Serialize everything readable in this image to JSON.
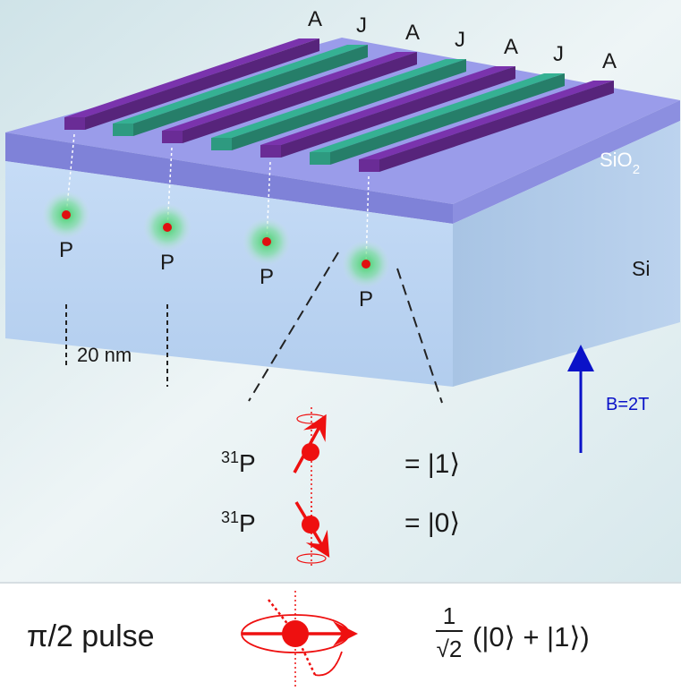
{
  "gate_labels": [
    "A",
    "J",
    "A",
    "J",
    "A",
    "J",
    "A"
  ],
  "layers": {
    "oxide": "SiO",
    "oxide_subscript": "2",
    "substrate": "Si"
  },
  "donor_label": "P",
  "spacing_label": "20 nm",
  "field_label": "B=2T",
  "spin_states": {
    "isotope": "31",
    "element": "P",
    "up_ket": "= |1⟩",
    "down_ket": "= |0⟩"
  },
  "pulse": {
    "label": "π/2 pulse",
    "numerator": "1",
    "denominator": "√2",
    "superposition": "(|0⟩ + |1⟩)"
  },
  "colors": {
    "gate_a": "#6a2c96",
    "gate_j": "#2e9a80",
    "oxide": "#8f92e2",
    "substrate": "#bcd6f4",
    "donor_glow": "#39d05f",
    "donor_core": "#e01010",
    "field_arrow": "#0a12c8",
    "spin": "#ee1010"
  }
}
